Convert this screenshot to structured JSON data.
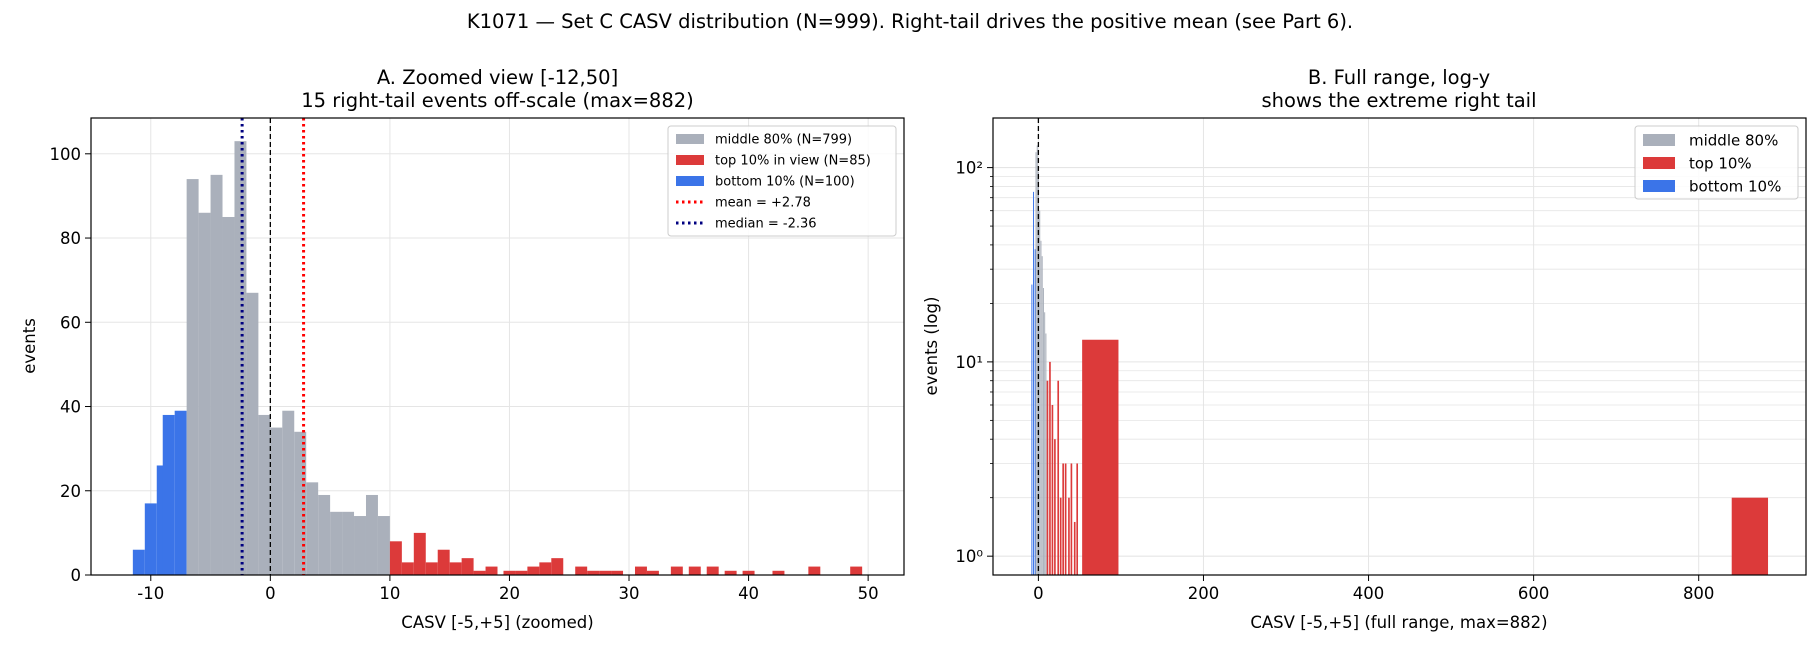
{
  "suptitle": "K1071 — Set C CASV distribution (N=999).  Right-tail drives the positive mean (see Part 6).",
  "colors": {
    "middle": "#aab0bb",
    "top": "#dc3a3a",
    "bottom": "#3b74e8",
    "mean_line": "#ff0000",
    "median_line": "#000080",
    "zero_line": "#000000",
    "grid": "#e5e5e5"
  },
  "chart_data": [
    {
      "type": "bar",
      "panel": "A",
      "title_line1": "A. Zoomed view  [-12,50]",
      "title_line2": "15 right-tail events off-scale (max=882)",
      "xlabel": "CASV [-5,+5]  (zoomed)",
      "ylabel": "events",
      "xlim": [
        -15,
        53
      ],
      "ylim": [
        0,
        108.5
      ],
      "xticks": [
        -10,
        0,
        10,
        20,
        30,
        40,
        50
      ],
      "yticks": [
        0,
        20,
        40,
        60,
        80,
        100
      ],
      "grid": true,
      "legend_position": "top-right",
      "bin_width": 1.0,
      "series": [
        {
          "name": "bottom 10% (N=100)",
          "key": "bottom",
          "points": [
            [
              -11,
              6
            ],
            [
              -10,
              17
            ],
            [
              -9,
              26
            ],
            [
              -8.5,
              38
            ],
            [
              -7.5,
              39
            ]
          ]
        },
        {
          "name": "middle 80% (N=799)",
          "key": "middle",
          "points": [
            [
              -6.5,
              94
            ],
            [
              -5.5,
              86
            ],
            [
              -4.5,
              95
            ],
            [
              -3.5,
              85
            ],
            [
              -2.5,
              103
            ],
            [
              -1.5,
              67
            ],
            [
              -0.5,
              38
            ],
            [
              0.5,
              35
            ],
            [
              1.5,
              39
            ],
            [
              2.5,
              34
            ],
            [
              3.5,
              22
            ],
            [
              4.5,
              19
            ],
            [
              5.5,
              15
            ],
            [
              6.5,
              15
            ],
            [
              7.5,
              14
            ],
            [
              8.5,
              19
            ],
            [
              9.5,
              14
            ]
          ]
        },
        {
          "name": "top 10% in view (N=85)",
          "key": "top",
          "points": [
            [
              10.5,
              8
            ],
            [
              11.5,
              3
            ],
            [
              12.5,
              10
            ],
            [
              13.5,
              3
            ],
            [
              14.5,
              6
            ],
            [
              15.5,
              3
            ],
            [
              16.5,
              4
            ],
            [
              17.5,
              1
            ],
            [
              18.5,
              2
            ],
            [
              20,
              1
            ],
            [
              21,
              1
            ],
            [
              22,
              2
            ],
            [
              23,
              3
            ],
            [
              24,
              4
            ],
            [
              26,
              2
            ],
            [
              27,
              1
            ],
            [
              28,
              1
            ],
            [
              29,
              1
            ],
            [
              31,
              2
            ],
            [
              32,
              1
            ],
            [
              34,
              2
            ],
            [
              35.5,
              2
            ],
            [
              37,
              2
            ],
            [
              38.5,
              1
            ],
            [
              40,
              1
            ],
            [
              42.5,
              1
            ],
            [
              45.5,
              2
            ],
            [
              49,
              2
            ]
          ]
        }
      ],
      "vlines": [
        {
          "key": "mean",
          "x": 2.78,
          "label": "mean = +2.78"
        },
        {
          "key": "median",
          "x": -2.36,
          "label": "median = -2.36"
        },
        {
          "key": "zero",
          "x": 0
        }
      ]
    },
    {
      "type": "bar",
      "panel": "B",
      "title_line1": "B. Full range, log-y",
      "title_line2": "shows the extreme right tail",
      "xlabel": "CASV [-5,+5]  (full range, max=882)",
      "ylabel": "events (log)",
      "xlim": [
        -55,
        930
      ],
      "yscale": "log",
      "ylim": [
        0.8,
        180
      ],
      "xticks": [
        0,
        200,
        400,
        600,
        800
      ],
      "yticks": [
        1,
        10,
        100
      ],
      "ytick_labels": [
        "10⁰",
        "10¹",
        "10²"
      ],
      "grid": true,
      "legend_position": "top-right",
      "series": [
        {
          "name": "bottom 10%",
          "key": "bottom",
          "points": [
            [
              -8,
              25,
              1
            ],
            [
              -6,
              75,
              1
            ],
            [
              -4,
              38,
              1
            ]
          ]
        },
        {
          "name": "middle 80%",
          "key": "middle",
          "points": [
            [
              -3,
              120,
              1
            ],
            [
              -1.5,
              130,
              1
            ],
            [
              0,
              95,
              1
            ],
            [
              1.5,
              60,
              1
            ],
            [
              3,
              42,
              1
            ],
            [
              4.5,
              35,
              1
            ],
            [
              6,
              24,
              1
            ],
            [
              7.5,
              18,
              1
            ],
            [
              9,
              14,
              1
            ]
          ]
        },
        {
          "name": "top 10%",
          "key": "top",
          "points": [
            [
              11,
              8,
              2
            ],
            [
              14,
              10,
              2
            ],
            [
              17,
              6,
              2
            ],
            [
              20,
              4,
              2
            ],
            [
              24,
              8,
              2
            ],
            [
              27,
              2,
              2
            ],
            [
              30,
              3,
              2
            ],
            [
              33,
              3,
              2
            ],
            [
              37,
              2,
              2
            ],
            [
              40,
              3,
              2
            ],
            [
              44,
              1.5,
              2
            ],
            [
              47,
              3,
              2
            ],
            [
              75,
              13,
              44
            ],
            [
              862,
              2,
              44
            ]
          ]
        }
      ],
      "vlines": [
        {
          "key": "zero",
          "x": 0
        }
      ]
    }
  ]
}
